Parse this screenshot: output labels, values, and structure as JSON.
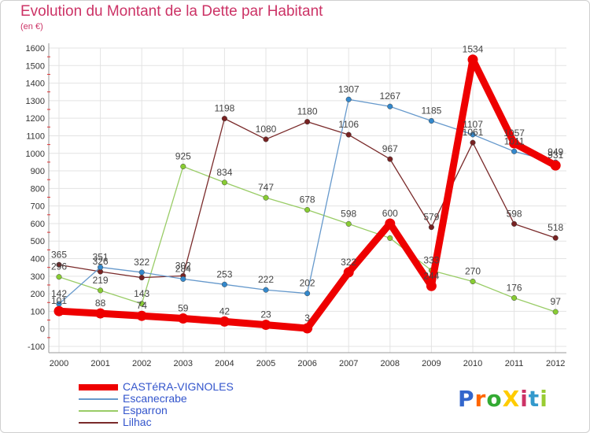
{
  "chart_data": {
    "type": "line",
    "title": "Evolution du Montant de la Dette par Habitant",
    "ylabel": "(en €)",
    "xlabel": "",
    "categories": [
      "2000",
      "2001",
      "2002",
      "2003",
      "2004",
      "2005",
      "2006",
      "2007",
      "2008",
      "2009",
      "2010",
      "2011",
      "2012"
    ],
    "ylim": [
      -100,
      1600
    ],
    "yticks": [
      -100,
      0,
      100,
      200,
      300,
      400,
      500,
      600,
      700,
      800,
      900,
      1000,
      1100,
      1200,
      1300,
      1400,
      1500,
      1600
    ],
    "series": [
      {
        "name": "Esparron",
        "color": "#99cc66",
        "dot": "#88cc33",
        "values": [
          296,
          219,
          143,
          925,
          834,
          747,
          678,
          598,
          517,
          333,
          270,
          176,
          97
        ],
        "labels": [
          "296",
          "219",
          "143",
          "925",
          "834",
          "747",
          "678",
          "598",
          "",
          "333",
          "270",
          "176",
          "97"
        ]
      },
      {
        "name": "Lilhac",
        "color": "#7a2a2a",
        "dot": "#772222",
        "values": [
          365,
          326,
          292,
          302,
          1198,
          1080,
          1180,
          1106,
          967,
          579,
          1061,
          598,
          518
        ],
        "labels": [
          "365",
          "326",
          "",
          "302",
          "1198",
          "1080",
          "1180",
          "1106",
          "967",
          "579",
          "1061",
          "598",
          "518"
        ]
      },
      {
        "name": "Escanecrabe",
        "color": "#6699cc",
        "dot": "#3388cc",
        "values": [
          142,
          351,
          322,
          284,
          253,
          222,
          202,
          1307,
          1267,
          1185,
          1107,
          1011,
          949
        ],
        "labels": [
          "142",
          "351",
          "322",
          "284",
          "253",
          "222",
          "202",
          "1307",
          "1267",
          "1185",
          "1107",
          "1011",
          "949"
        ]
      },
      {
        "name": "CASTéRA-VIGNOLES",
        "color": "#ee0000",
        "dot": "#ee0000",
        "values": [
          101,
          88,
          74,
          59,
          42,
          23,
          3,
          322,
          600,
          244,
          1534,
          1057,
          931
        ],
        "labels": [
          "101",
          "88",
          "74",
          "59",
          "42",
          "23",
          "3",
          "322",
          "600",
          "244",
          "1534",
          "1057",
          "931"
        ]
      }
    ],
    "legend_order": [
      "CASTéRA-VIGNOLES",
      "Escanecrabe",
      "Esparron",
      "Lilhac"
    ]
  },
  "logo": {
    "text": "ProXiti",
    "colors": [
      "#3366cc",
      "#ff6600",
      "#33aa33",
      "#ffcc00",
      "#cc3366",
      "#3399cc",
      "#99cc33"
    ]
  }
}
